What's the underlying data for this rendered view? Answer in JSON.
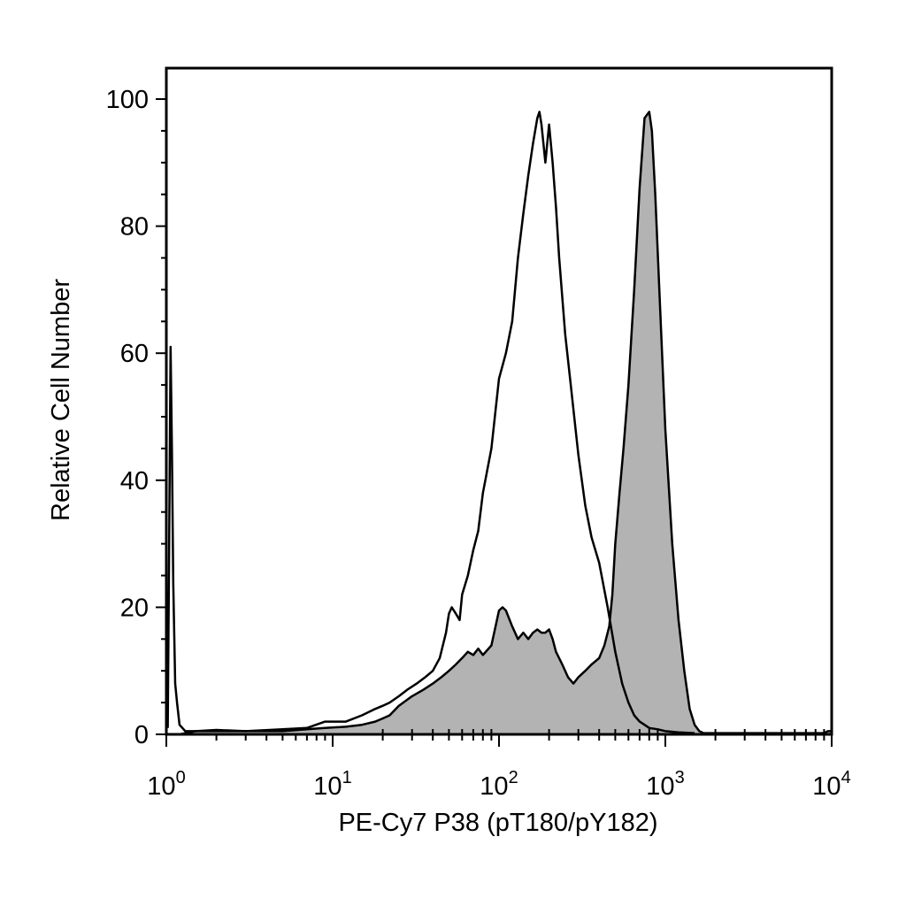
{
  "chart_data": {
    "type": "area",
    "title": "",
    "xlabel": "PE-Cy7 P38 (pT180/pY182)",
    "ylabel": "Relative Cell Number",
    "xscale": "log",
    "xlim": [
      1,
      10000
    ],
    "ylim": [
      0,
      105
    ],
    "grid": false,
    "legend": "none",
    "x_ticks": [
      {
        "value": 1,
        "base": "10",
        "exp": "0"
      },
      {
        "value": 10,
        "base": "10",
        "exp": "1"
      },
      {
        "value": 100,
        "base": "10",
        "exp": "2"
      },
      {
        "value": 1000,
        "base": "10",
        "exp": "3"
      },
      {
        "value": 10000,
        "base": "10",
        "exp": "4"
      }
    ],
    "y_ticks": [
      0,
      20,
      40,
      60,
      80,
      100
    ],
    "series": [
      {
        "style": "filled",
        "color": "#b3b3b3",
        "x": [
          1.0,
          1.05,
          1.2,
          1.5,
          2,
          3,
          5,
          7,
          9,
          12,
          15,
          18,
          20,
          22,
          25,
          30,
          35,
          40,
          45,
          50,
          55,
          60,
          65,
          70,
          75,
          80,
          90,
          100,
          105,
          110,
          120,
          130,
          140,
          150,
          160,
          170,
          180,
          190,
          200,
          210,
          220,
          240,
          260,
          280,
          300,
          330,
          360,
          400,
          430,
          460,
          480,
          500,
          530,
          560,
          600,
          650,
          700,
          750,
          800,
          830,
          870,
          920,
          1000,
          1100,
          1200,
          1300,
          1400,
          1500,
          1600,
          1700,
          1800,
          1900,
          2000,
          2200,
          3000,
          5000,
          7000,
          9000,
          9500,
          10000
        ],
        "y": [
          0,
          0,
          0,
          0.5,
          0.5,
          0.5,
          0.5,
          0.8,
          1,
          1.2,
          1.5,
          2,
          2.5,
          3,
          4.5,
          6,
          7,
          8,
          9,
          10,
          11,
          12,
          13,
          12.5,
          13.5,
          12.5,
          14,
          19.5,
          20,
          19.5,
          17,
          15,
          16,
          15,
          16,
          16.5,
          16,
          16,
          16.5,
          15,
          13,
          11,
          9,
          8,
          9,
          10,
          11,
          12,
          14,
          17,
          22,
          30,
          38,
          45,
          55,
          70,
          86,
          97,
          98,
          95,
          85,
          70,
          48,
          30,
          18,
          10,
          4,
          1.5,
          0.5,
          0.2,
          0.2,
          0.2,
          0.2,
          0.2,
          0.2,
          0.2,
          0.2,
          0.2,
          0.5,
          0.5
        ]
      },
      {
        "style": "outline",
        "color": "#000000",
        "x": [
          1.02,
          1.04,
          1.06,
          1.08,
          1.1,
          1.13,
          1.16,
          1.2,
          1.3,
          1.5,
          2,
          3,
          5,
          7,
          9,
          12,
          15,
          18,
          20,
          22,
          25,
          28,
          32,
          36,
          40,
          44,
          48,
          50,
          52,
          55,
          58,
          60,
          65,
          70,
          75,
          80,
          90,
          100,
          110,
          120,
          130,
          140,
          150,
          160,
          170,
          175,
          180,
          190,
          195,
          200,
          210,
          220,
          230,
          250,
          270,
          300,
          330,
          360,
          400,
          450,
          500,
          550,
          600,
          650,
          700,
          750,
          800,
          900,
          1000,
          1200,
          1500
        ],
        "y": [
          1,
          30,
          61,
          45,
          24,
          8,
          5,
          1.5,
          0.5,
          0.5,
          0.7,
          0.5,
          0.8,
          1,
          2,
          2,
          3,
          4,
          4.5,
          5,
          6,
          7,
          8,
          9,
          10,
          12,
          16,
          19,
          20,
          19,
          18,
          22,
          25,
          29,
          32,
          38,
          45,
          56,
          60,
          65,
          75,
          82,
          88,
          93,
          97,
          98,
          96,
          90,
          93,
          96,
          90,
          83,
          75,
          63,
          55,
          44,
          36,
          31,
          27,
          20,
          13,
          8,
          5,
          3,
          2,
          1.5,
          1,
          0.8,
          0.5,
          0.3,
          0.2
        ]
      }
    ]
  }
}
